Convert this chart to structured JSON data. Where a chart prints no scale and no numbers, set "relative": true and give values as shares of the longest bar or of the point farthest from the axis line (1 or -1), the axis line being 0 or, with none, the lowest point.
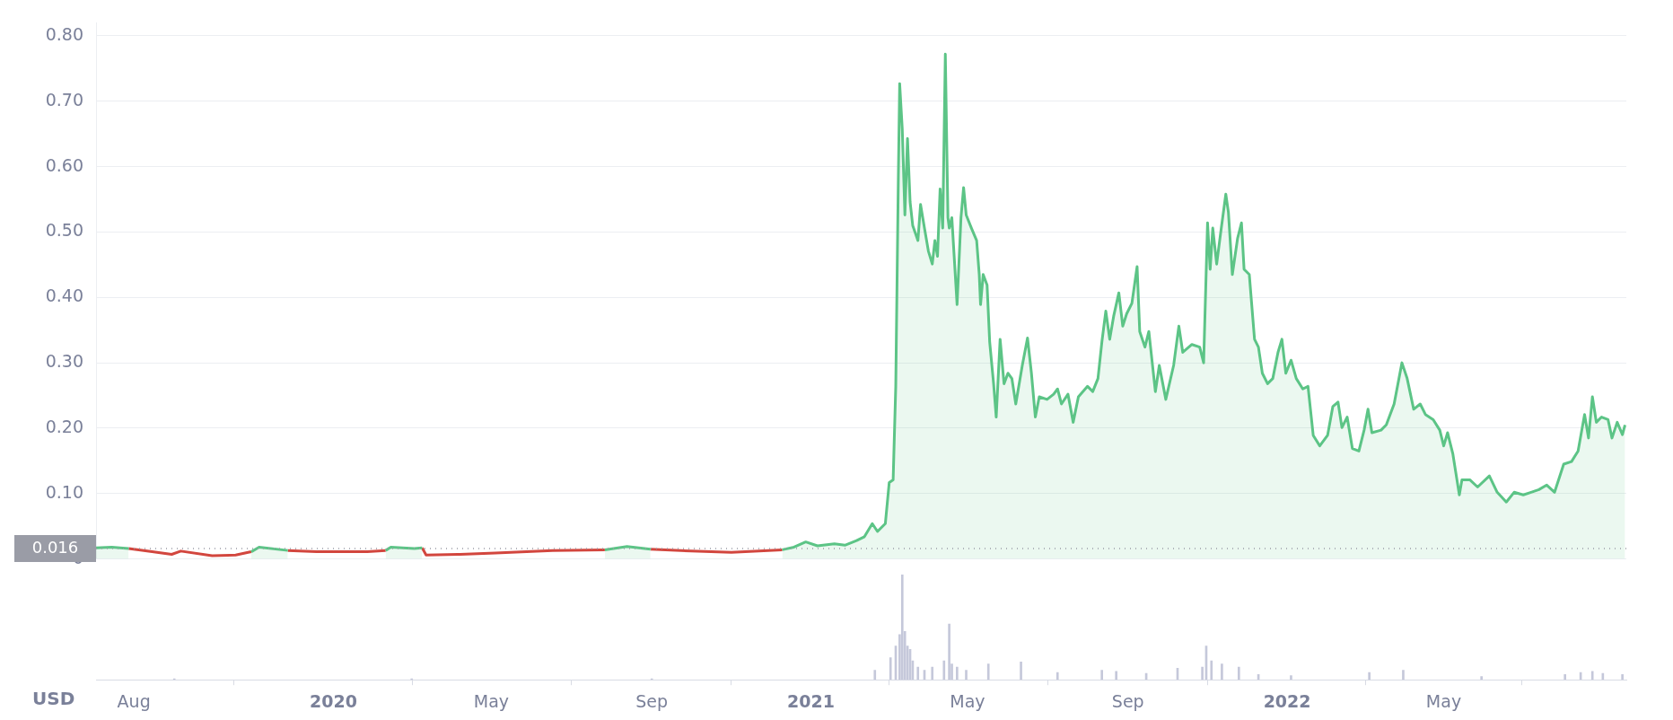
{
  "chart_data": [
    {
      "type": "line",
      "series": [
        {
          "type": "area",
          "color": "#5cc486",
          "x": [
            "2019-07-03",
            "2019-07-15",
            "2019-07-28",
            "2019-08-15",
            "2019-08-30",
            "2019-09-06",
            "2019-09-30",
            "2019-10-18",
            "2019-10-30",
            "2019-11-05",
            "2019-11-27",
            "2019-12-19",
            "2020-01-27",
            "2020-02-10",
            "2020-02-14",
            "2020-03-03",
            "2020-03-09",
            "2020-03-12",
            "2020-04-07",
            "2020-05-04",
            "2020-06-17",
            "2020-07-27",
            "2020-08-13",
            "2020-08-31",
            "2020-10-01",
            "2020-11-01",
            "2020-12-10",
            "2020-12-19",
            "2020-12-28",
            "2021-01-06",
            "2021-01-19",
            "2021-01-27",
            "2021-02-05",
            "2021-02-11",
            "2021-02-17",
            "2021-02-21",
            "2021-02-27",
            "2021-03-02",
            "2021-03-05",
            "2021-03-07",
            "2021-03-09",
            "2021-03-10",
            "2021-03-12",
            "2021-03-14",
            "2021-03-16",
            "2021-03-18",
            "2021-03-20",
            "2021-03-24",
            "2021-03-26",
            "2021-03-29",
            "2021-04-01",
            "2021-04-04",
            "2021-04-06",
            "2021-04-08",
            "2021-04-10",
            "2021-04-12",
            "2021-04-14",
            "2021-04-16",
            "2021-04-17",
            "2021-04-19",
            "2021-04-23",
            "2021-04-26",
            "2021-04-28",
            "2021-04-30",
            "2021-05-04",
            "2021-05-08",
            "2021-05-10",
            "2021-05-11",
            "2021-05-13",
            "2021-05-16",
            "2021-05-18",
            "2021-05-21",
            "2021-05-23",
            "2021-05-26",
            "2021-05-29",
            "2021-06-01",
            "2021-06-04",
            "2021-06-07",
            "2021-06-12",
            "2021-06-16",
            "2021-06-19",
            "2021-06-22",
            "2021-06-25",
            "2021-07-01",
            "2021-07-06",
            "2021-07-09",
            "2021-07-12",
            "2021-07-17",
            "2021-07-21",
            "2021-07-25",
            "2021-08-01",
            "2021-08-05",
            "2021-08-09",
            "2021-08-12",
            "2021-08-15",
            "2021-08-18",
            "2021-08-21",
            "2021-08-25",
            "2021-08-28",
            "2021-08-31",
            "2021-09-04",
            "2021-09-08",
            "2021-09-10",
            "2021-09-14",
            "2021-09-17",
            "2021-09-22",
            "2021-09-25",
            "2021-09-30",
            "2021-10-06",
            "2021-10-10",
            "2021-10-13",
            "2021-10-20",
            "2021-10-26",
            "2021-10-29",
            "2021-11-01",
            "2021-11-03",
            "2021-11-05",
            "2021-11-08",
            "2021-11-11",
            "2021-11-15",
            "2021-11-17",
            "2021-11-20",
            "2021-11-24",
            "2021-11-27",
            "2021-11-29",
            "2021-12-03",
            "2021-12-07",
            "2021-12-10",
            "2021-12-13",
            "2021-12-17",
            "2021-12-21",
            "2021-12-25",
            "2021-12-28",
            "2021-12-31",
            "2022-01-04",
            "2022-01-08",
            "2022-01-13",
            "2022-01-17",
            "2022-01-21",
            "2022-01-26",
            "2022-02-01",
            "2022-02-05",
            "2022-02-09",
            "2022-02-12",
            "2022-02-16",
            "2022-02-20",
            "2022-02-25",
            "2022-03-01",
            "2022-03-04",
            "2022-03-07",
            "2022-03-14",
            "2022-03-18",
            "2022-03-24",
            "2022-03-30",
            "2022-04-03",
            "2022-04-08",
            "2022-04-13",
            "2022-04-17",
            "2022-04-23",
            "2022-04-28",
            "2022-05-01",
            "2022-05-04",
            "2022-05-08",
            "2022-05-13",
            "2022-05-15",
            "2022-05-21",
            "2022-05-27",
            "2022-06-05",
            "2022-06-11",
            "2022-06-18",
            "2022-06-24",
            "2022-07-01",
            "2022-07-07",
            "2022-07-13",
            "2022-07-19",
            "2022-07-25",
            "2022-08-01",
            "2022-08-07",
            "2022-08-12",
            "2022-08-17",
            "2022-08-20",
            "2022-08-23",
            "2022-08-26",
            "2022-08-30",
            "2022-09-04",
            "2022-09-07",
            "2022-09-11",
            "2022-09-15",
            "2022-09-17"
          ],
          "values": [
            0.017,
            0.018,
            0.016,
            null,
            null,
            null,
            null,
            null,
            0.011,
            0.018,
            0.013,
            null,
            null,
            0.013,
            0.018,
            0.016,
            0.017,
            null,
            null,
            null,
            null,
            0.014,
            0.019,
            0.015,
            null,
            null,
            0.014,
            0.018,
            0.026,
            0.02,
            0.023,
            0.021,
            0.028,
            0.034,
            0.054,
            0.042,
            0.054,
            0.117,
            0.121,
            0.264,
            0.586,
            0.727,
            0.657,
            0.526,
            0.643,
            0.546,
            0.51,
            0.487,
            0.542,
            0.506,
            0.471,
            0.451,
            0.487,
            0.463,
            0.566,
            0.506,
            0.772,
            0.522,
            0.506,
            0.522,
            0.389,
            0.522,
            0.568,
            0.526,
            0.506,
            0.487,
            0.435,
            0.389,
            0.435,
            0.419,
            0.332,
            0.268,
            0.217,
            0.336,
            0.268,
            0.284,
            0.276,
            0.237,
            0.296,
            0.338,
            0.284,
            0.217,
            0.248,
            0.244,
            0.252,
            0.26,
            0.237,
            0.252,
            0.209,
            0.248,
            0.264,
            0.256,
            0.276,
            0.332,
            0.379,
            0.336,
            0.371,
            0.407,
            0.356,
            0.375,
            0.391,
            0.447,
            0.348,
            0.324,
            0.348,
            0.256,
            0.296,
            0.244,
            0.296,
            0.356,
            0.316,
            0.328,
            0.324,
            0.3,
            0.514,
            0.443,
            0.506,
            0.451,
            0.498,
            0.558,
            0.53,
            0.435,
            0.49,
            0.514,
            0.443,
            0.435,
            0.336,
            0.324,
            0.284,
            0.268,
            0.276,
            0.316,
            0.336,
            0.284,
            0.304,
            0.276,
            0.26,
            0.264,
            0.189,
            0.173,
            0.189,
            0.233,
            0.24,
            0.201,
            0.217,
            0.169,
            0.165,
            0.197,
            0.229,
            0.193,
            0.197,
            0.205,
            0.237,
            0.3,
            0.276,
            0.229,
            0.237,
            0.221,
            0.213,
            0.197,
            0.173,
            0.193,
            0.161,
            0.098,
            0.121,
            0.121,
            0.11,
            0.127,
            0.102,
            0.087,
            0.102,
            0.098,
            0.102,
            0.106,
            0.113,
            0.102,
            0.145,
            0.149,
            0.165,
            0.221,
            0.185,
            0.248,
            0.209,
            0.217,
            0.213,
            0.185,
            0.209,
            0.19,
            0.205
          ]
        },
        {
          "type": "line",
          "color": "#d2463e",
          "x": [
            "2019-07-28",
            "2019-08-15",
            "2019-08-30",
            "2019-09-06",
            "2019-09-30",
            "2019-10-18",
            "2019-10-30",
            "2019-11-05",
            "2019-11-27",
            "2019-12-19",
            "2020-01-27",
            "2020-02-10",
            "2020-02-14",
            "2020-03-03",
            "2020-03-09",
            "2020-03-12",
            "2020-04-07",
            "2020-05-04",
            "2020-06-17",
            "2020-07-27",
            "2020-08-13",
            "2020-08-31",
            "2020-10-01",
            "2020-11-01",
            "2020-12-10"
          ],
          "values": [
            0.016,
            0.011,
            0.007,
            0.012,
            0.005,
            0.006,
            0.011,
            null,
            0.013,
            0.011,
            0.011,
            0.013,
            null,
            null,
            0.017,
            0.006,
            0.007,
            0.009,
            0.013,
            0.014,
            null,
            0.015,
            0.012,
            0.01,
            0.014
          ]
        }
      ],
      "xlim": [
        "2019-07-03",
        "2022-09-18"
      ],
      "ylim": [
        0,
        0.82
      ],
      "yticks": [
        0,
        {
          "value": 0.1,
          "label": "0.10"
        },
        {
          "value": 0.2,
          "label": "0.20"
        },
        {
          "value": 0.3,
          "label": "0.30"
        },
        {
          "value": 0.4,
          "label": "0.40"
        },
        {
          "value": 0.5,
          "label": "0.50"
        },
        {
          "value": 0.6,
          "label": "0.60"
        },
        {
          "value": 0.7,
          "label": "0.70"
        },
        {
          "value": 0.8,
          "label": "0.80"
        }
      ],
      "grid": "y",
      "tick_labels": "y",
      "ref_lines": [
        {
          "axis": "y",
          "value": 0.016,
          "label": "0.016",
          "line_style": "dotted",
          "color": "#9a9ca6"
        }
      ]
    },
    {
      "type": "bar",
      "color": "#c5c8da",
      "relative": true,
      "x": [
        "2019-09-01",
        "2020-03-01",
        "2020-09-01",
        "2021-02-19",
        "2021-03-03",
        "2021-03-07",
        "2021-03-10",
        "2021-03-12",
        "2021-03-14",
        "2021-03-16",
        "2021-03-18",
        "2021-03-20",
        "2021-03-24",
        "2021-03-29",
        "2021-04-04",
        "2021-04-13",
        "2021-04-17",
        "2021-04-19",
        "2021-04-23",
        "2021-04-30",
        "2021-05-17",
        "2021-06-11",
        "2021-07-09",
        "2021-08-12",
        "2021-08-23",
        "2021-09-15",
        "2021-10-09",
        "2021-10-28",
        "2021-10-31",
        "2021-11-04",
        "2021-11-12",
        "2021-11-25",
        "2021-12-10",
        "2022-01-04",
        "2022-03-05",
        "2022-03-31",
        "2022-05-30",
        "2022-08-02",
        "2022-08-14",
        "2022-08-23",
        "2022-08-31",
        "2022-09-15"
      ],
      "values": [
        0.01,
        0.01,
        0.01,
        0.09,
        0.21,
        0.32,
        0.43,
        1,
        0.46,
        0.32,
        0.29,
        0.18,
        0.12,
        0.09,
        0.12,
        0.18,
        0.53,
        0.15,
        0.12,
        0.09,
        0.15,
        0.17,
        0.07,
        0.09,
        0.08,
        0.06,
        0.11,
        0.12,
        0.32,
        0.18,
        0.15,
        0.12,
        0.05,
        0.04,
        0.07,
        0.09,
        0.03,
        0.05,
        0.07,
        0.08,
        0.06,
        0.05
      ],
      "xlim": [
        "2019-07-03",
        "2022-09-18"
      ],
      "xticks": [
        {
          "value": "2019-08-01",
          "label": "Aug"
        },
        {
          "value": "2020-01-01",
          "label": "2020"
        },
        {
          "value": "2020-05-01",
          "label": "May"
        },
        {
          "value": "2020-09-01",
          "label": "Sep"
        },
        {
          "value": "2021-01-01",
          "label": "2021"
        },
        {
          "value": "2021-05-01",
          "label": "May"
        },
        {
          "value": "2021-09-01",
          "label": "Sep"
        },
        {
          "value": "2022-01-01",
          "label": "2022"
        },
        {
          "value": "2022-05-01",
          "label": "May"
        }
      ],
      "tick_labels": "x",
      "annotations": [
        "USD"
      ]
    }
  ]
}
